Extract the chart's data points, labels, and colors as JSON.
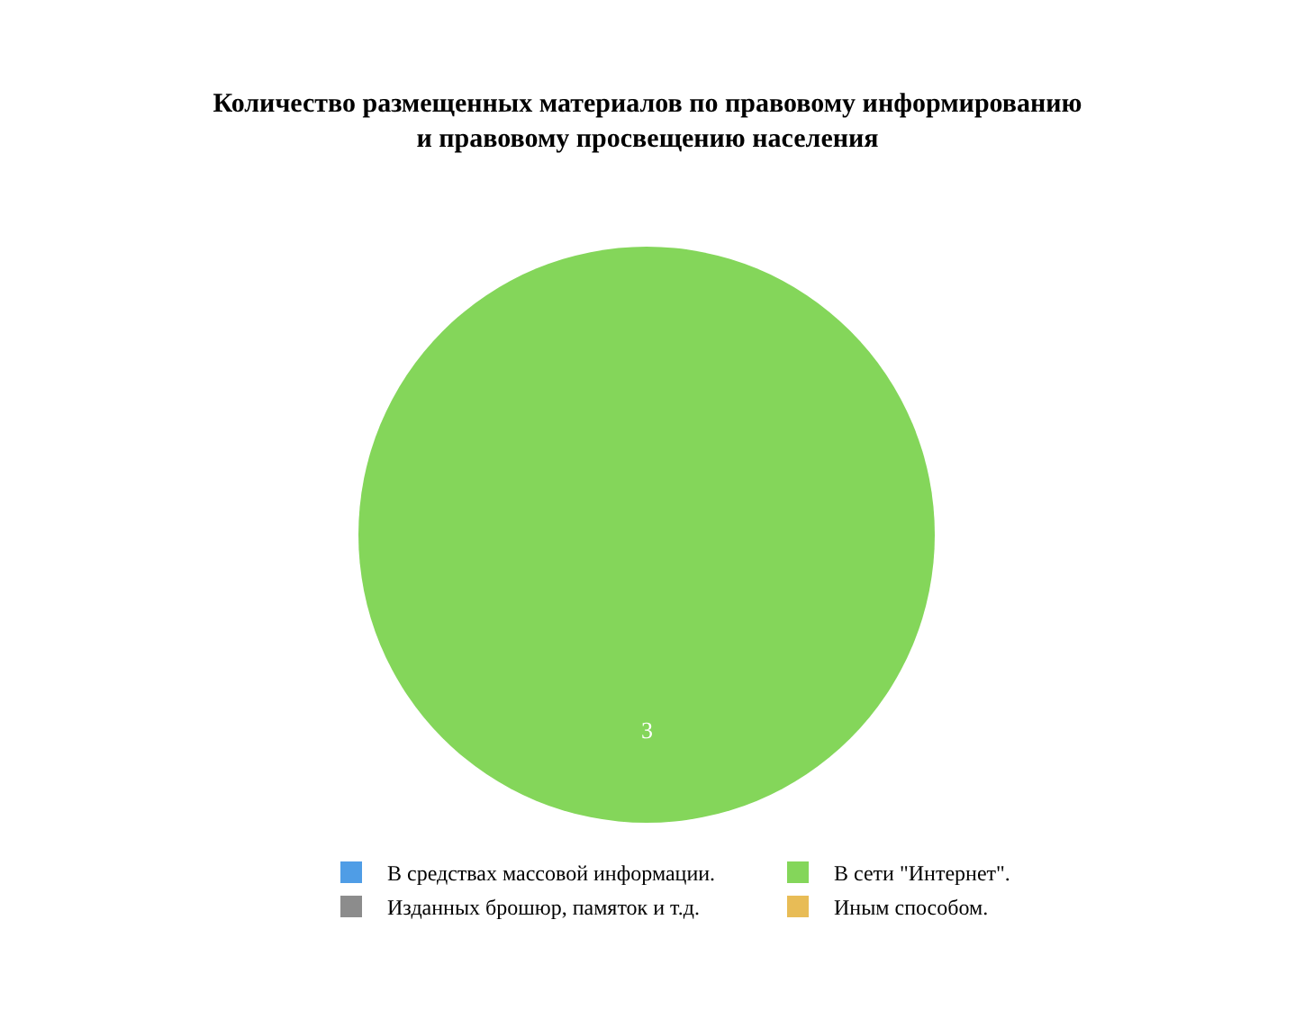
{
  "chart_data": {
    "type": "pie",
    "title": "Количество размещенных материалов по правовому информированию\nи правовому просвещению населения",
    "categories": [
      "В средствах массовой информации.",
      "В сети \"Интернет\".",
      "Изданных брошюр, памяток и т.д.",
      "Иным способом."
    ],
    "values": [
      0,
      3,
      0,
      0
    ],
    "colors": [
      "#4f9de6",
      "#84d65a",
      "#8c8c8c",
      "#e8bc56"
    ],
    "value_labels": [
      null,
      "3",
      null,
      null
    ],
    "legend": "bottom"
  }
}
